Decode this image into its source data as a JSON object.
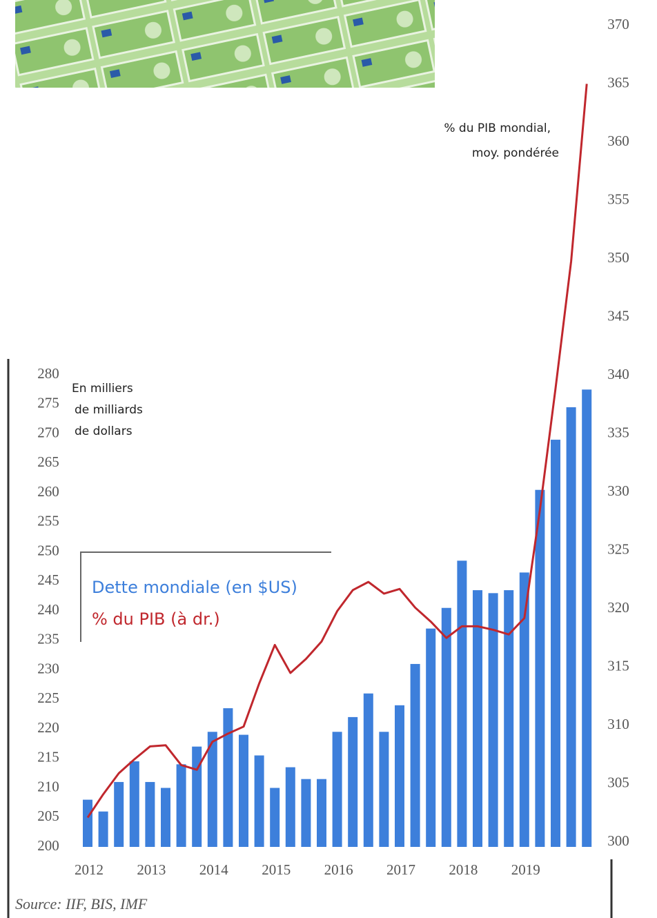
{
  "chart_data": {
    "type": "bar",
    "categories": [
      "2012",
      null,
      null,
      null,
      "2013",
      null,
      null,
      null,
      "2014",
      null,
      null,
      null,
      "2015",
      null,
      null,
      null,
      "2016",
      null,
      null,
      null,
      "2017",
      null,
      null,
      null,
      "2018",
      null,
      null,
      null,
      "2019",
      null,
      null,
      null,
      null
    ],
    "series": [
      {
        "name": "Dette mondiale (en $US)",
        "color": "#3d7fdb",
        "type": "bar",
        "values": [
          208,
          206,
          211,
          214.5,
          211,
          210,
          214,
          217,
          219.5,
          223.5,
          219,
          215.5,
          210,
          213.5,
          211.5,
          211.5,
          219.5,
          222,
          226,
          219.5,
          224,
          231,
          237,
          240.5,
          248.5,
          243.5,
          243,
          243.5,
          246.5,
          260.5,
          269,
          274.5,
          277.5
        ]
      },
      {
        "name": "% du PIB (à dr.)",
        "color": "#c0272d",
        "type": "line",
        "axis": "y2",
        "values": [
          302.1,
          304.1,
          305.9,
          307.1,
          308.2,
          308.3,
          306.6,
          306.2,
          308.6,
          309.3,
          309.9,
          313.6,
          316.9,
          314.5,
          315.7,
          317.2,
          319.8,
          321.6,
          322.3,
          321.3,
          321.7,
          320.1,
          318.9,
          317.5,
          318.5,
          318.5,
          318.2,
          317.8,
          319.2,
          328.5,
          338.9,
          349.8,
          365
        ]
      }
    ],
    "ylim": [
      200,
      280
    ],
    "yticks": [
      200,
      205,
      210,
      215,
      220,
      225,
      230,
      235,
      240,
      245,
      250,
      255,
      260,
      265,
      270,
      275,
      280
    ],
    "y2lim": [
      300,
      370
    ],
    "y2ticks": [
      300,
      305,
      310,
      315,
      320,
      325,
      330,
      335,
      340,
      345,
      350,
      355,
      360,
      365,
      370
    ],
    "y_annotation": [
      "En milliers",
      "de milliards",
      "de dollars"
    ],
    "y2_annotation": [
      "% du PIB mondial,",
      "moy. pondérée"
    ],
    "source": "Source: IIF, BIS, IMF"
  }
}
